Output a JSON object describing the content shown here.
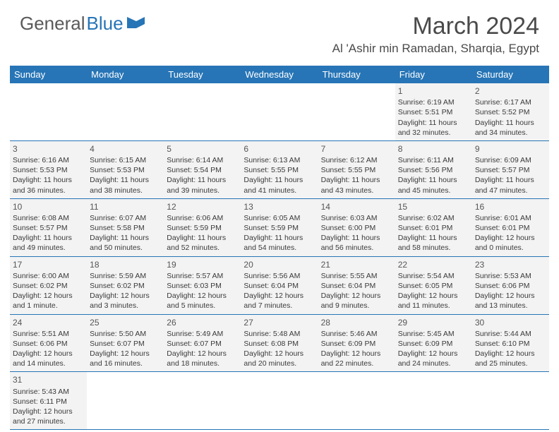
{
  "logo": {
    "general": "General",
    "blue": "Blue"
  },
  "title": {
    "month": "March 2024",
    "location": "Al 'Ashir min Ramadan, Sharqia, Egypt"
  },
  "weekdays": [
    "Sunday",
    "Monday",
    "Tuesday",
    "Wednesday",
    "Thursday",
    "Friday",
    "Saturday"
  ],
  "colors": {
    "header_bg": "#2775b6",
    "cell_bg": "#f3f3f3",
    "border": "#2775b6",
    "text": "#3a3a3a"
  },
  "weeks": [
    [
      {
        "empty": true
      },
      {
        "empty": true
      },
      {
        "empty": true
      },
      {
        "empty": true
      },
      {
        "empty": true
      },
      {
        "num": "1",
        "sunrise": "Sunrise: 6:19 AM",
        "sunset": "Sunset: 5:51 PM",
        "day1": "Daylight: 11 hours",
        "day2": "and 32 minutes."
      },
      {
        "num": "2",
        "sunrise": "Sunrise: 6:17 AM",
        "sunset": "Sunset: 5:52 PM",
        "day1": "Daylight: 11 hours",
        "day2": "and 34 minutes."
      }
    ],
    [
      {
        "num": "3",
        "sunrise": "Sunrise: 6:16 AM",
        "sunset": "Sunset: 5:53 PM",
        "day1": "Daylight: 11 hours",
        "day2": "and 36 minutes."
      },
      {
        "num": "4",
        "sunrise": "Sunrise: 6:15 AM",
        "sunset": "Sunset: 5:53 PM",
        "day1": "Daylight: 11 hours",
        "day2": "and 38 minutes."
      },
      {
        "num": "5",
        "sunrise": "Sunrise: 6:14 AM",
        "sunset": "Sunset: 5:54 PM",
        "day1": "Daylight: 11 hours",
        "day2": "and 39 minutes."
      },
      {
        "num": "6",
        "sunrise": "Sunrise: 6:13 AM",
        "sunset": "Sunset: 5:55 PM",
        "day1": "Daylight: 11 hours",
        "day2": "and 41 minutes."
      },
      {
        "num": "7",
        "sunrise": "Sunrise: 6:12 AM",
        "sunset": "Sunset: 5:55 PM",
        "day1": "Daylight: 11 hours",
        "day2": "and 43 minutes."
      },
      {
        "num": "8",
        "sunrise": "Sunrise: 6:11 AM",
        "sunset": "Sunset: 5:56 PM",
        "day1": "Daylight: 11 hours",
        "day2": "and 45 minutes."
      },
      {
        "num": "9",
        "sunrise": "Sunrise: 6:09 AM",
        "sunset": "Sunset: 5:57 PM",
        "day1": "Daylight: 11 hours",
        "day2": "and 47 minutes."
      }
    ],
    [
      {
        "num": "10",
        "sunrise": "Sunrise: 6:08 AM",
        "sunset": "Sunset: 5:57 PM",
        "day1": "Daylight: 11 hours",
        "day2": "and 49 minutes."
      },
      {
        "num": "11",
        "sunrise": "Sunrise: 6:07 AM",
        "sunset": "Sunset: 5:58 PM",
        "day1": "Daylight: 11 hours",
        "day2": "and 50 minutes."
      },
      {
        "num": "12",
        "sunrise": "Sunrise: 6:06 AM",
        "sunset": "Sunset: 5:59 PM",
        "day1": "Daylight: 11 hours",
        "day2": "and 52 minutes."
      },
      {
        "num": "13",
        "sunrise": "Sunrise: 6:05 AM",
        "sunset": "Sunset: 5:59 PM",
        "day1": "Daylight: 11 hours",
        "day2": "and 54 minutes."
      },
      {
        "num": "14",
        "sunrise": "Sunrise: 6:03 AM",
        "sunset": "Sunset: 6:00 PM",
        "day1": "Daylight: 11 hours",
        "day2": "and 56 minutes."
      },
      {
        "num": "15",
        "sunrise": "Sunrise: 6:02 AM",
        "sunset": "Sunset: 6:01 PM",
        "day1": "Daylight: 11 hours",
        "day2": "and 58 minutes."
      },
      {
        "num": "16",
        "sunrise": "Sunrise: 6:01 AM",
        "sunset": "Sunset: 6:01 PM",
        "day1": "Daylight: 12 hours",
        "day2": "and 0 minutes."
      }
    ],
    [
      {
        "num": "17",
        "sunrise": "Sunrise: 6:00 AM",
        "sunset": "Sunset: 6:02 PM",
        "day1": "Daylight: 12 hours",
        "day2": "and 1 minute."
      },
      {
        "num": "18",
        "sunrise": "Sunrise: 5:59 AM",
        "sunset": "Sunset: 6:02 PM",
        "day1": "Daylight: 12 hours",
        "day2": "and 3 minutes."
      },
      {
        "num": "19",
        "sunrise": "Sunrise: 5:57 AM",
        "sunset": "Sunset: 6:03 PM",
        "day1": "Daylight: 12 hours",
        "day2": "and 5 minutes."
      },
      {
        "num": "20",
        "sunrise": "Sunrise: 5:56 AM",
        "sunset": "Sunset: 6:04 PM",
        "day1": "Daylight: 12 hours",
        "day2": "and 7 minutes."
      },
      {
        "num": "21",
        "sunrise": "Sunrise: 5:55 AM",
        "sunset": "Sunset: 6:04 PM",
        "day1": "Daylight: 12 hours",
        "day2": "and 9 minutes."
      },
      {
        "num": "22",
        "sunrise": "Sunrise: 5:54 AM",
        "sunset": "Sunset: 6:05 PM",
        "day1": "Daylight: 12 hours",
        "day2": "and 11 minutes."
      },
      {
        "num": "23",
        "sunrise": "Sunrise: 5:53 AM",
        "sunset": "Sunset: 6:06 PM",
        "day1": "Daylight: 12 hours",
        "day2": "and 13 minutes."
      }
    ],
    [
      {
        "num": "24",
        "sunrise": "Sunrise: 5:51 AM",
        "sunset": "Sunset: 6:06 PM",
        "day1": "Daylight: 12 hours",
        "day2": "and 14 minutes."
      },
      {
        "num": "25",
        "sunrise": "Sunrise: 5:50 AM",
        "sunset": "Sunset: 6:07 PM",
        "day1": "Daylight: 12 hours",
        "day2": "and 16 minutes."
      },
      {
        "num": "26",
        "sunrise": "Sunrise: 5:49 AM",
        "sunset": "Sunset: 6:07 PM",
        "day1": "Daylight: 12 hours",
        "day2": "and 18 minutes."
      },
      {
        "num": "27",
        "sunrise": "Sunrise: 5:48 AM",
        "sunset": "Sunset: 6:08 PM",
        "day1": "Daylight: 12 hours",
        "day2": "and 20 minutes."
      },
      {
        "num": "28",
        "sunrise": "Sunrise: 5:46 AM",
        "sunset": "Sunset: 6:09 PM",
        "day1": "Daylight: 12 hours",
        "day2": "and 22 minutes."
      },
      {
        "num": "29",
        "sunrise": "Sunrise: 5:45 AM",
        "sunset": "Sunset: 6:09 PM",
        "day1": "Daylight: 12 hours",
        "day2": "and 24 minutes."
      },
      {
        "num": "30",
        "sunrise": "Sunrise: 5:44 AM",
        "sunset": "Sunset: 6:10 PM",
        "day1": "Daylight: 12 hours",
        "day2": "and 25 minutes."
      }
    ],
    [
      {
        "num": "31",
        "sunrise": "Sunrise: 5:43 AM",
        "sunset": "Sunset: 6:11 PM",
        "day1": "Daylight: 12 hours",
        "day2": "and 27 minutes."
      },
      {
        "empty": true
      },
      {
        "empty": true
      },
      {
        "empty": true
      },
      {
        "empty": true
      },
      {
        "empty": true
      },
      {
        "empty": true
      }
    ]
  ]
}
